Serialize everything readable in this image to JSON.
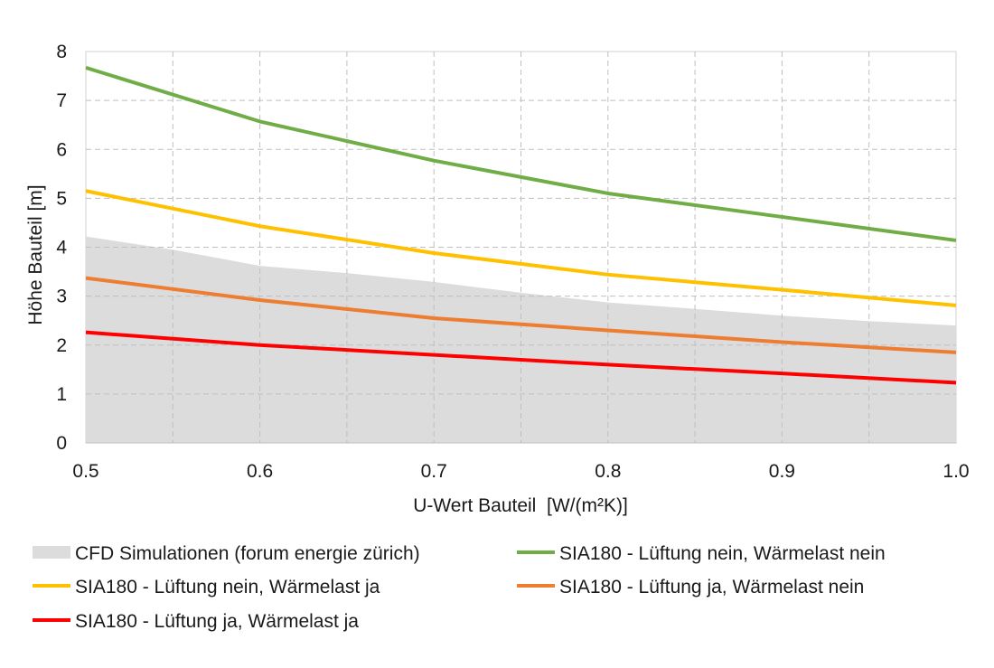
{
  "chart_data": {
    "type": "line",
    "xlabel": "U-Wert Bauteil  [W/(m²K)]",
    "ylabel": "Höhe Bauteil [m]",
    "xlim": [
      0.5,
      1.0
    ],
    "ylim": [
      0,
      8
    ],
    "xticks": [
      "0.5",
      "0.6",
      "0.7",
      "0.8",
      "0.9",
      "1.0"
    ],
    "yticks": [
      "0",
      "1",
      "2",
      "3",
      "4",
      "5",
      "6",
      "7",
      "8"
    ],
    "grid": "dashed, minor vertical lines every 0.05",
    "legend_position": "bottom",
    "area": {
      "name": "CFD Simulationen (forum energie zürich)",
      "color": "#dcdcdc",
      "x": [
        0.5,
        0.55,
        0.6,
        0.65,
        0.7,
        0.75,
        0.8,
        0.85,
        0.9,
        0.95,
        1.0
      ],
      "y": [
        4.22,
        3.95,
        3.62,
        3.47,
        3.29,
        3.07,
        2.87,
        2.74,
        2.6,
        2.49,
        2.4
      ]
    },
    "series": [
      {
        "name": "SIA180 - Lüftung nein, Wärmelast nein",
        "color": "#70ad47",
        "x": [
          0.5,
          0.6,
          0.7,
          0.8,
          0.9,
          1.0
        ],
        "y": [
          7.67,
          6.57,
          5.77,
          5.1,
          4.62,
          4.14
        ]
      },
      {
        "name": "SIA180 - Lüftung nein, Wärmelast ja",
        "color": "#ffc000",
        "x": [
          0.5,
          0.6,
          0.7,
          0.8,
          0.9,
          1.0
        ],
        "y": [
          5.15,
          4.43,
          3.88,
          3.44,
          3.13,
          2.81
        ]
      },
      {
        "name": "SIA180 - Lüftung ja, Wärmelast nein",
        "color": "#ed7d31",
        "x": [
          0.5,
          0.6,
          0.7,
          0.8,
          0.9,
          1.0
        ],
        "y": [
          3.37,
          2.92,
          2.55,
          2.3,
          2.06,
          1.85
        ]
      },
      {
        "name": "SIA180 - Lüftung ja, Wärmelast ja",
        "color": "#ff0000",
        "x": [
          0.5,
          0.6,
          0.7,
          0.8,
          0.9,
          1.0
        ],
        "y": [
          2.26,
          2.0,
          1.8,
          1.6,
          1.42,
          1.23
        ]
      }
    ]
  }
}
